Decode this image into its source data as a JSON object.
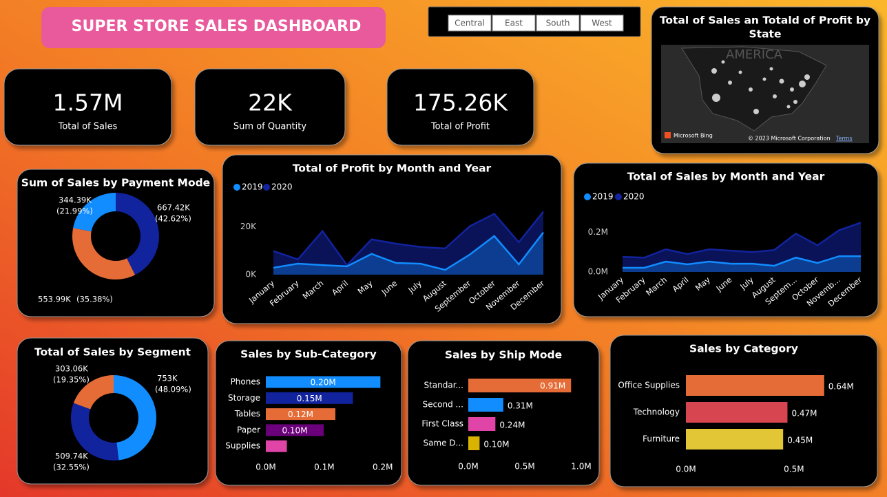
{
  "header": {
    "title": "SUPER STORE SALES DASHBOARD"
  },
  "slicer": {
    "options": [
      "Central",
      "East",
      "South",
      "West"
    ]
  },
  "kpis": [
    {
      "value": "1.57M",
      "label": "Total of Sales"
    },
    {
      "value": "22K",
      "label": "Sum of Quantity"
    },
    {
      "value": "175.26K",
      "label": "Total of Profit"
    }
  ],
  "map": {
    "title_lines": [
      "Total of Sales an Totald of Profit by",
      "State"
    ],
    "watermark": "AMERICA",
    "provider": "Microsoft Bing",
    "copyright": "© 2023 Microsoft Corporation",
    "terms": "Terms"
  },
  "chart_data": [
    {
      "type": "pie",
      "title": "Sum of Sales by Payment Mode",
      "values": [
        667.42,
        553.99,
        344.39
      ],
      "value_labels": [
        "667.42K",
        "553.99K",
        "344.39K"
      ],
      "percents": [
        42.62,
        35.38,
        21.99
      ],
      "percent_labels": [
        "(42.62%)",
        "(35.38%)",
        "(21.99%)"
      ],
      "colors": [
        "#12239e",
        "#e66c37",
        "#118dff"
      ]
    },
    {
      "type": "area",
      "title": "Total of Profit by Month and Year",
      "categories": [
        "January",
        "February",
        "March",
        "April",
        "May",
        "June",
        "July",
        "August",
        "September",
        "October",
        "November",
        "December"
      ],
      "series": [
        {
          "name": "2019",
          "color": "#118dff",
          "values": [
            2900,
            4600,
            4000,
            3500,
            8700,
            4900,
            4600,
            2000,
            8400,
            16200,
            4300,
            17700
          ]
        },
        {
          "name": "2020",
          "color": "#12239e",
          "values": [
            9900,
            6400,
            18300,
            4000,
            14800,
            13000,
            11600,
            11000,
            20300,
            25500,
            13600,
            26400
          ]
        }
      ],
      "ylim": [
        0,
        28000
      ],
      "yticks": [
        {
          "value": 0,
          "label": "0K"
        },
        {
          "value": 20000,
          "label": "20K"
        }
      ]
    },
    {
      "type": "area",
      "title": "Total of Sales by Month and Year",
      "categories": [
        "January",
        "February",
        "March",
        "April",
        "May",
        "June",
        "July",
        "August",
        "Septem...",
        "October",
        "Novemb...",
        "December"
      ],
      "series": [
        {
          "name": "2019",
          "color": "#118dff",
          "values": [
            0.021,
            0.021,
            0.052,
            0.038,
            0.052,
            0.041,
            0.041,
            0.031,
            0.072,
            0.045,
            0.079,
            0.079
          ]
        },
        {
          "name": "2020",
          "color": "#12239e",
          "values": [
            0.076,
            0.072,
            0.114,
            0.09,
            0.114,
            0.107,
            0.1,
            0.11,
            0.193,
            0.134,
            0.21,
            0.248
          ]
        }
      ],
      "ylim": [
        0,
        0.26
      ],
      "yticks": [
        {
          "value": 0,
          "label": "0.0M"
        },
        {
          "value": 0.2,
          "label": "0.2M"
        }
      ]
    },
    {
      "type": "pie",
      "title": "Total of Sales by Segment",
      "values": [
        753,
        509.74,
        303.06
      ],
      "value_labels": [
        "753K",
        "509.74K",
        "303.06K"
      ],
      "percents": [
        48.09,
        32.55,
        19.35
      ],
      "percent_labels": [
        "(48.09%)",
        "(32.55%)",
        "(19.35%)"
      ],
      "colors": [
        "#118dff",
        "#12239e",
        "#e66c37"
      ]
    },
    {
      "type": "hbar",
      "title": "Sales by Sub-Category",
      "categories": [
        "Phones",
        "Storage",
        "Tables",
        "Paper",
        "Supplies"
      ],
      "values": [
        0.196,
        0.149,
        0.119,
        0.099,
        0.036
      ],
      "value_labels": [
        "0.20M",
        "0.15M",
        "0.12M",
        "0.10M",
        null
      ],
      "colors": [
        "#118dff",
        "#12239e",
        "#e66c37",
        "#6b007b",
        "#e044a7"
      ],
      "xlim": [
        0,
        0.205
      ],
      "xticks": [
        {
          "value": 0,
          "label": "0.0M"
        },
        {
          "value": 0.1,
          "label": "0.1M"
        },
        {
          "value": 0.2,
          "label": "0.2M"
        }
      ]
    },
    {
      "type": "hbar",
      "title": "Sales by Ship Mode",
      "categories": [
        "Standar...",
        "Second ...",
        "First Class",
        "Same D..."
      ],
      "values": [
        0.91,
        0.31,
        0.24,
        0.1
      ],
      "value_labels": [
        "0.91M",
        "0.31M",
        "0.24M",
        "0.10M"
      ],
      "colors": [
        "#e66c37",
        "#118dff",
        "#e044a7",
        "#d9b300"
      ],
      "xlim": [
        0,
        1.0
      ],
      "xticks": [
        {
          "value": 0,
          "label": "0.0M"
        },
        {
          "value": 0.5,
          "label": "0.5M"
        },
        {
          "value": 1.0,
          "label": "1.0M"
        }
      ]
    },
    {
      "type": "hbar",
      "title": "Sales by Category",
      "categories": [
        "Office Supplies",
        "Technology",
        "Furniture"
      ],
      "values": [
        0.64,
        0.47,
        0.45
      ],
      "value_labels": [
        "0.64M",
        "0.47M",
        "0.45M"
      ],
      "colors": [
        "#e66c37",
        "#d64550",
        "#e2c636"
      ],
      "xlim": [
        0,
        0.8
      ],
      "xticks": [
        {
          "value": 0,
          "label": "0.0M"
        },
        {
          "value": 0.5,
          "label": "0.5M"
        }
      ]
    }
  ]
}
